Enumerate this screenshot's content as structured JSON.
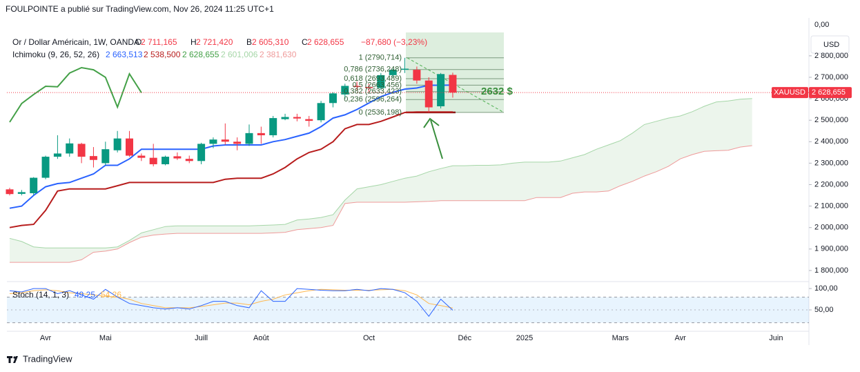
{
  "header": "FOULPOINTE a publié sur TradingView.com, Nov 26, 2024 11:25 UTC+1",
  "footer_logo": "TradingView",
  "chart_data": [
    {
      "type": "candlestick",
      "title": "Or / Dollar Américain, 1W, OANDA",
      "ohlc_legend": [
        {
          "key": "O",
          "value": 2711.165,
          "label": "2 711,165"
        },
        {
          "key": "H",
          "value": 2721.42,
          "label": "2 721,420"
        },
        {
          "key": "B",
          "value": 2605.31,
          "label": "2 605,310"
        },
        {
          "key": "C",
          "value": 2628.655,
          "label": "2 628,655"
        }
      ],
      "change": "−87,680 (−3,23%)",
      "currency": "USD",
      "symbol": "XAUUSD",
      "last_price": {
        "value": 2628.655,
        "label": "2 628,655"
      },
      "top_label": "0,00",
      "up_color": "#089981",
      "down_color": "#f23645",
      "categories": [
        null,
        null,
        null,
        "Avr",
        null,
        null,
        null,
        null,
        "Mai",
        null,
        null,
        null,
        null,
        null,
        null,
        null,
        "Juill",
        null,
        null,
        null,
        null,
        "Août",
        null,
        null,
        null,
        null,
        null,
        null,
        null,
        null,
        "Oct",
        null,
        null,
        null,
        null,
        null,
        null,
        null,
        "Déc",
        null,
        null,
        null,
        null,
        "2025",
        null,
        null,
        null,
        null,
        null,
        null,
        null,
        "Mars",
        null,
        null,
        null,
        null,
        "Avr",
        null,
        null,
        null,
        null,
        null,
        null,
        null,
        "Juin",
        null,
        null
      ],
      "open": [
        2178,
        2157,
        2160,
        2232,
        2330,
        2345,
        2390,
        2333,
        2300,
        2360,
        2415,
        2335,
        2325,
        2295,
        2332,
        2320,
        2310,
        2390,
        2410,
        2400,
        2390,
        2440,
        2430,
        2505,
        2515,
        2505,
        2500,
        2580,
        2620,
        2660,
        2655,
        2650,
        2710,
        2735,
        2735,
        2685,
        2565,
        2711.165,
        null,
        null,
        null,
        null,
        null,
        null,
        null,
        null,
        null,
        null,
        null,
        null,
        null,
        null,
        null,
        null,
        null,
        null,
        null,
        null,
        null,
        null,
        null,
        null,
        null,
        null,
        null,
        null,
        null
      ],
      "high": [
        2185,
        2175,
        2235,
        2335,
        2430,
        2415,
        2395,
        2375,
        2400,
        2450,
        2450,
        2345,
        2390,
        2335,
        2350,
        2335,
        2395,
        2420,
        2485,
        2420,
        2480,
        2470,
        2520,
        2530,
        2530,
        2520,
        2590,
        2630,
        2670,
        2680,
        2670,
        2720,
        2740,
        2790.714,
        2750,
        2700,
        2720,
        2721.42,
        null,
        null,
        null,
        null,
        null,
        null,
        null,
        null,
        null,
        null,
        null,
        null,
        null,
        null,
        null,
        null,
        null,
        null,
        null,
        null,
        null,
        null,
        null,
        null,
        null,
        null,
        null,
        null,
        null
      ],
      "low": [
        2150,
        2150,
        2150,
        2225,
        2320,
        2330,
        2300,
        2280,
        2290,
        2350,
        2330,
        2310,
        2285,
        2290,
        2315,
        2300,
        2295,
        2370,
        2385,
        2360,
        2380,
        2390,
        2420,
        2500,
        2495,
        2470,
        2490,
        2560,
        2600,
        2640,
        2630,
        2640,
        2700,
        2720,
        2670,
        2536.198,
        2555,
        2605.31,
        null,
        null,
        null,
        null,
        null,
        null,
        null,
        null,
        null,
        null,
        null,
        null,
        null,
        null,
        null,
        null,
        null,
        null,
        null,
        null,
        null,
        null,
        null,
        null,
        null,
        null,
        null,
        null,
        null
      ],
      "close": [
        2156,
        2165,
        2232,
        2330,
        2345,
        2392,
        2330,
        2315,
        2365,
        2415,
        2335,
        2325,
        2295,
        2330,
        2322,
        2310,
        2390,
        2410,
        2400,
        2390,
        2440,
        2430,
        2510,
        2515,
        2508,
        2497,
        2580,
        2625,
        2660,
        2655,
        2650,
        2710,
        2735,
        2740,
        2685,
        2560,
        2715,
        2628.655,
        null,
        null,
        null,
        null,
        null,
        null,
        null,
        null,
        null,
        null,
        null,
        null,
        null,
        null,
        null,
        null,
        null,
        null,
        null,
        null,
        null,
        null,
        null,
        null,
        null,
        null,
        null,
        null,
        null
      ],
      "ichimoku": {
        "name": "Ichimoku (9, 26, 52, 26)",
        "cloud_color": "rgba(67,160,71,0.1)",
        "series": [
          {
            "color": "#2962ff",
            "width": 2,
            "legend": "2 663,513",
            "values": [
              2090,
              2100,
              2150,
              2190,
              2205,
              2210,
              2230,
              2250,
              2290,
              2290,
              2320,
              2365,
              2365,
              2365,
              2365,
              2365,
              2365,
              2380,
              2385,
              2385,
              2385,
              2385,
              2400,
              2410,
              2425,
              2440,
              2470,
              2510,
              2525,
              2550,
              2580,
              2610,
              2630,
              2645,
              2650,
              2663,
              2663,
              2663.513,
              null,
              null,
              null,
              null,
              null,
              null,
              null,
              null,
              null,
              null,
              null,
              null,
              null,
              null,
              null,
              null,
              null,
              null,
              null,
              null,
              null,
              null,
              null,
              null,
              null,
              null,
              null,
              null,
              null
            ]
          },
          {
            "color": "#b71c1c",
            "width": 2,
            "legend": "2 538,500",
            "values": [
              2000,
              2010,
              2015,
              2080,
              2170,
              2180,
              2180,
              2180,
              2180,
              2195,
              2210,
              2210,
              2210,
              2210,
              2210,
              2210,
              2210,
              2210,
              2225,
              2230,
              2230,
              2230,
              2250,
              2280,
              2320,
              2350,
              2365,
              2400,
              2460,
              2480,
              2480,
              2495,
              2515,
              2536,
              2538.5,
              2538.5,
              2538.5,
              2538.5,
              null,
              null,
              null,
              null,
              null,
              null,
              null,
              null,
              null,
              null,
              null,
              null,
              null,
              null,
              null,
              null,
              null,
              null,
              null,
              null,
              null,
              null,
              null,
              null,
              null,
              null,
              null,
              null,
              null
            ]
          },
          {
            "color": "#43a047",
            "width": 2,
            "legend": "2 628,655",
            "values": [
              2491,
              2578,
              2620,
              2658,
              2656,
              2720,
              2745,
              2735,
              2700,
              2561,
              2716,
              2628.655,
              null,
              null,
              null,
              null,
              null,
              null,
              null,
              null,
              null,
              null,
              null,
              null,
              null,
              null,
              null,
              null,
              null,
              null,
              null,
              null,
              null,
              null,
              null,
              null,
              null,
              null,
              null,
              null,
              null,
              null,
              null,
              null,
              null,
              null,
              null,
              null,
              null,
              null,
              null,
              null,
              null,
              null,
              null,
              null,
              null,
              null,
              null,
              null,
              null,
              null,
              null,
              null,
              null,
              null,
              null
            ]
          },
          {
            "color": "#a5d6a7",
            "width": 1,
            "legend": "2 601,006",
            "values": [
              1950,
              1935,
              1910,
              1905,
              1905,
              1905,
              1905,
              1905,
              1905,
              1910,
              1940,
              1975,
              1990,
              2005,
              2008,
              2008,
              2008,
              2008,
              2008,
              2008,
              2008,
              2010,
              2012,
              2015,
              2035,
              2040,
              2047,
              2060,
              2128,
              2180,
              2190,
              2200,
              2215,
              2230,
              2240,
              2260,
              2275,
              2288,
              2288,
              2290,
              2290,
              2292,
              2300,
              2305,
              2305,
              2305,
              2310,
              2325,
              2340,
              2365,
              2385,
              2405,
              2440,
              2480,
              2495,
              2510,
              2520,
              2540,
              2565,
              2585,
              2590,
              2598,
              2601.006,
              null,
              null,
              null,
              null
            ]
          },
          {
            "color": "#ef9a9a",
            "width": 1,
            "legend": "2 381,630",
            "values": [
              1838,
              1838,
              1838,
              1838,
              1838,
              1838,
              1850,
              1885,
              1890,
              1900,
              1930,
              1955,
              1965,
              1970,
              1973,
              1973,
              1973,
              1973,
              1973,
              1973,
              1973,
              1973,
              1975,
              1978,
              1990,
              1995,
              2000,
              2010,
              2112,
              2118,
              2118,
              2118,
              2118,
              2118,
              2120,
              2122,
              2125,
              2125,
              2125,
              2125,
              2125,
              2125,
              2125,
              2125,
              2140,
              2140,
              2140,
              2160,
              2166,
              2166,
              2170,
              2195,
              2215,
              2240,
              2260,
              2285,
              2320,
              2340,
              2355,
              2358,
              2360,
              2375,
              2381.63,
              null,
              null,
              null,
              null
            ]
          }
        ]
      },
      "fib_levels": [
        {
          "label": "1 (2790,714)",
          "price": 2790.714
        },
        {
          "label": "0,786 (2736,248)",
          "price": 2736.248
        },
        {
          "label": "0,618 (2693,489)",
          "price": 2693.489
        },
        {
          "label": "0,5 (2663,456)",
          "price": 2663.456
        },
        {
          "label": "0,382 (2633,423)",
          "price": 2633.423
        },
        {
          "label": "0,236 (2596,264)",
          "price": 2596.264
        },
        {
          "label": "0 (2536,198)",
          "price": 2536.198
        }
      ],
      "annotation": {
        "label": "2632 $",
        "price": 2632
      },
      "ylim": [
        1758,
        2970
      ],
      "yticks": [
        {
          "value": 1800,
          "label": "1 800,000"
        },
        {
          "value": 1900,
          "label": "1 900,000"
        },
        {
          "value": 2000,
          "label": "2 000,000"
        },
        {
          "value": 2100,
          "label": "2 100,000"
        },
        {
          "value": 2200,
          "label": "2 200,000"
        },
        {
          "value": 2300,
          "label": "2 300,000"
        },
        {
          "value": 2400,
          "label": "2 400,000"
        },
        {
          "value": 2500,
          "label": "2 500,000"
        },
        {
          "value": 2600,
          "label": "2 600,000"
        },
        {
          "value": 2700,
          "label": "2 700,000"
        },
        {
          "value": 2800,
          "label": "2 800,000"
        }
      ]
    },
    {
      "type": "line",
      "title": "Stoch (14, 1, 3)",
      "series": [
        {
          "color": "#2962ff",
          "legend": "49,25",
          "values": [
            95,
            92,
            100,
            100,
            88,
            95,
            85,
            75,
            98,
            80,
            65,
            60,
            55,
            52,
            55,
            52,
            60,
            70,
            70,
            60,
            55,
            95,
            70,
            70,
            100,
            98,
            96,
            95,
            95,
            98,
            95,
            100,
            98,
            90,
            70,
            35,
            75,
            49.25,
            null,
            null,
            null,
            null,
            null,
            null,
            null,
            null,
            null,
            null,
            null,
            null,
            null,
            null,
            null,
            null,
            null,
            null,
            null,
            null,
            null,
            null,
            null,
            null,
            null,
            null,
            null,
            null,
            null
          ]
        },
        {
          "color": "#ffb74d",
          "legend": "54,26",
          "values": [
            88,
            90,
            95,
            97,
            95,
            90,
            88,
            85,
            82,
            80,
            75,
            65,
            60,
            55,
            55,
            55,
            58,
            62,
            66,
            66,
            62,
            70,
            75,
            85,
            90,
            95,
            98,
            97,
            96,
            96,
            96,
            97,
            98,
            95,
            85,
            65,
            60,
            54.26,
            null,
            null,
            null,
            null,
            null,
            null,
            null,
            null,
            null,
            null,
            null,
            null,
            null,
            null,
            null,
            null,
            null,
            null,
            null,
            null,
            null,
            null,
            null,
            null,
            null,
            null,
            null,
            null,
            null
          ]
        }
      ],
      "bands": [
        80,
        20
      ],
      "band_color": "rgba(33,150,243,0.1)",
      "ylim": [
        0,
        113
      ],
      "yticks": [
        {
          "value": 100,
          "label": "100,00"
        },
        {
          "value": 50,
          "label": "50,00"
        }
      ]
    }
  ]
}
